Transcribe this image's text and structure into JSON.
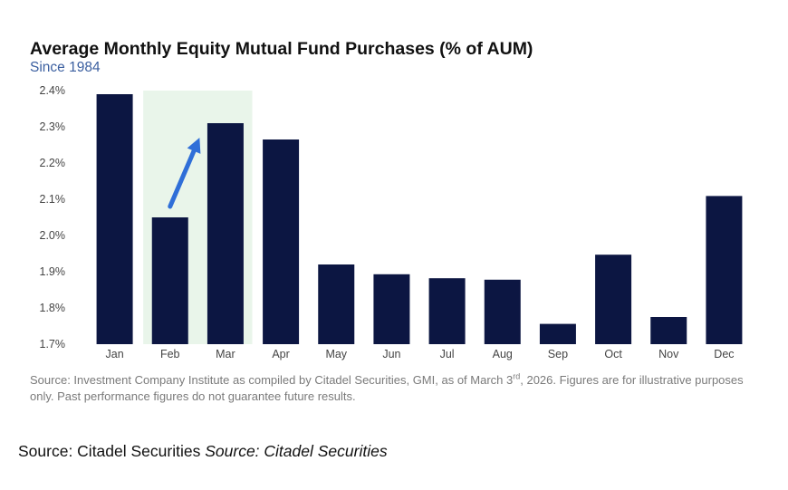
{
  "chart_data": {
    "type": "bar",
    "title": "Average Monthly Equity Mutual Fund Purchases (% of AUM)",
    "subtitle": "Since 1984",
    "categories": [
      "Jan",
      "Feb",
      "Mar",
      "Apr",
      "May",
      "Jun",
      "Jul",
      "Aug",
      "Sep",
      "Oct",
      "Nov",
      "Dec"
    ],
    "values": [
      2.39,
      2.05,
      2.31,
      2.265,
      1.92,
      1.893,
      1.882,
      1.878,
      1.756,
      1.947,
      1.775,
      2.109
    ],
    "ylim": [
      1.7,
      2.4
    ],
    "yticks": [
      1.7,
      1.8,
      1.9,
      2.0,
      2.1,
      2.2,
      2.3,
      2.4
    ],
    "ytick_labels": [
      "1.7%",
      "1.8%",
      "1.9%",
      "2.0%",
      "2.1%",
      "2.2%",
      "2.3%",
      "2.4%"
    ],
    "xlabel": "",
    "ylabel": "",
    "grid": false,
    "legend": "none",
    "highlight": {
      "categories": [
        "Feb",
        "Mar"
      ],
      "color": "#e9f5ea"
    },
    "annotation_arrow": {
      "from_category": "Feb",
      "to_category": "Mar",
      "color": "#2f6fd8"
    },
    "bar_color": "#0c1642"
  },
  "source_note": {
    "prefix": "Source: Investment Company Institute as compiled by Citadel Securities, GMI, as of March 3",
    "sup": "rd",
    "suffix": ", 2026. Figures are for illustrative purposes only. Past performance figures do not guarantee future results."
  },
  "footer": {
    "source_plain": "Source: Citadel Securities",
    "source_italic": "Source: Citadel Securities"
  }
}
